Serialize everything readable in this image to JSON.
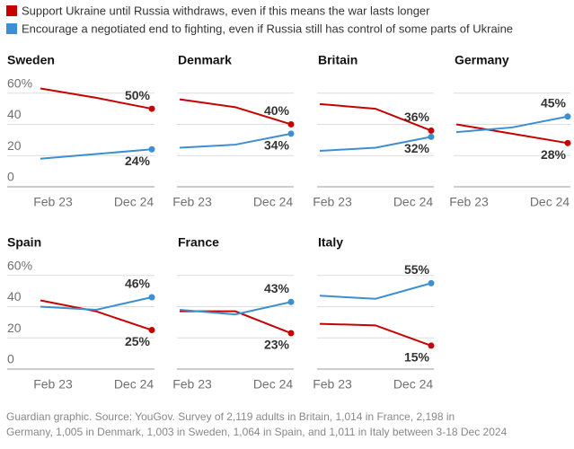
{
  "legend": [
    {
      "name": "Support Ukraine until Russia withdraws, even if this means the war lasts longer",
      "color": "#c70000"
    },
    {
      "name": "Encourage a negotiated end to fighting, even if Russia still has control of some parts of Ukraine",
      "color": "#3d8fd1"
    }
  ],
  "source": "Guardian graphic. Source: YouGov. Survey of 2,119 adults in Britain, 1,014 in France, 2,198 in Germany, 1,005 in Denmark, 1,003 in Sweden, 1,064 in Spain, and 1,011 in Italy between 3-18 Dec 2024",
  "chart_data": [
    {
      "type": "line",
      "title": "Sweden",
      "categories": [
        "Feb 23",
        null,
        "Dec 24"
      ],
      "ylim": [
        0,
        65
      ],
      "yticks": [
        0,
        20,
        40,
        {
          "value": 60,
          "label": "60%"
        }
      ],
      "ytick_labels": true,
      "grid": true,
      "series": [
        {
          "color": "#c70000",
          "values": [
            63,
            57,
            50
          ],
          "value_labels": [
            null,
            null,
            "50%"
          ]
        },
        {
          "color": "#3d8fd1",
          "values": [
            18,
            21,
            24
          ],
          "value_labels": [
            null,
            null,
            "24%"
          ]
        }
      ]
    },
    {
      "type": "line",
      "title": "Denmark",
      "categories": [
        "Feb 23",
        null,
        "Dec 24"
      ],
      "ylim": [
        0,
        65
      ],
      "yticks": [
        0,
        20,
        40,
        {
          "value": 60,
          "label": "60%"
        }
      ],
      "ytick_labels": false,
      "grid": true,
      "series": [
        {
          "color": "#c70000",
          "values": [
            56,
            51,
            40
          ],
          "value_labels": [
            null,
            null,
            "40%"
          ]
        },
        {
          "color": "#3d8fd1",
          "values": [
            25,
            27,
            34
          ],
          "value_labels": [
            null,
            null,
            "34%"
          ]
        }
      ]
    },
    {
      "type": "line",
      "title": "Britain",
      "categories": [
        "Feb 23",
        null,
        "Dec 24"
      ],
      "ylim": [
        0,
        65
      ],
      "yticks": [
        0,
        20,
        40,
        {
          "value": 60,
          "label": "60%"
        }
      ],
      "ytick_labels": false,
      "grid": true,
      "series": [
        {
          "color": "#c70000",
          "values": [
            53,
            50,
            36
          ],
          "value_labels": [
            null,
            null,
            "36%"
          ]
        },
        {
          "color": "#3d8fd1",
          "values": [
            23,
            25,
            32
          ],
          "value_labels": [
            null,
            null,
            "32%"
          ]
        }
      ]
    },
    {
      "type": "line",
      "title": "Germany",
      "categories": [
        "Feb 23",
        null,
        "Dec 24"
      ],
      "ylim": [
        0,
        65
      ],
      "yticks": [
        0,
        20,
        40,
        {
          "value": 60,
          "label": "60%"
        }
      ],
      "ytick_labels": false,
      "grid": true,
      "series": [
        {
          "color": "#c70000",
          "values": [
            40,
            34,
            28
          ],
          "value_labels": [
            null,
            null,
            "28%"
          ]
        },
        {
          "color": "#3d8fd1",
          "values": [
            35,
            38,
            45
          ],
          "value_labels": [
            null,
            null,
            "45%"
          ]
        }
      ]
    },
    {
      "type": "line",
      "title": "Spain",
      "categories": [
        "Feb 23",
        null,
        "Dec 24"
      ],
      "ylim": [
        0,
        65
      ],
      "yticks": [
        0,
        20,
        40,
        {
          "value": 60,
          "label": "60%"
        }
      ],
      "ytick_labels": true,
      "grid": true,
      "series": [
        {
          "color": "#c70000",
          "values": [
            44,
            37,
            25
          ],
          "value_labels": [
            null,
            null,
            "25%"
          ]
        },
        {
          "color": "#3d8fd1",
          "values": [
            40,
            38,
            46
          ],
          "value_labels": [
            null,
            null,
            "46%"
          ]
        }
      ]
    },
    {
      "type": "line",
      "title": "France",
      "categories": [
        "Feb 23",
        null,
        "Dec 24"
      ],
      "ylim": [
        0,
        65
      ],
      "yticks": [
        0,
        20,
        40,
        {
          "value": 60,
          "label": "60%"
        }
      ],
      "ytick_labels": false,
      "grid": true,
      "series": [
        {
          "color": "#c70000",
          "values": [
            37,
            37,
            23
          ],
          "value_labels": [
            null,
            null,
            "23%"
          ]
        },
        {
          "color": "#3d8fd1",
          "values": [
            38,
            35,
            43
          ],
          "value_labels": [
            null,
            null,
            "43%"
          ]
        }
      ]
    },
    {
      "type": "line",
      "title": "Italy",
      "categories": [
        "Feb 23",
        null,
        "Dec 24"
      ],
      "ylim": [
        0,
        65
      ],
      "yticks": [
        0,
        20,
        40,
        {
          "value": 60,
          "label": "60%"
        }
      ],
      "ytick_labels": false,
      "grid": true,
      "series": [
        {
          "color": "#c70000",
          "values": [
            29,
            28,
            15
          ],
          "value_labels": [
            null,
            null,
            "15%"
          ]
        },
        {
          "color": "#3d8fd1",
          "values": [
            47,
            45,
            55
          ],
          "value_labels": [
            null,
            null,
            "55%"
          ]
        }
      ]
    }
  ]
}
